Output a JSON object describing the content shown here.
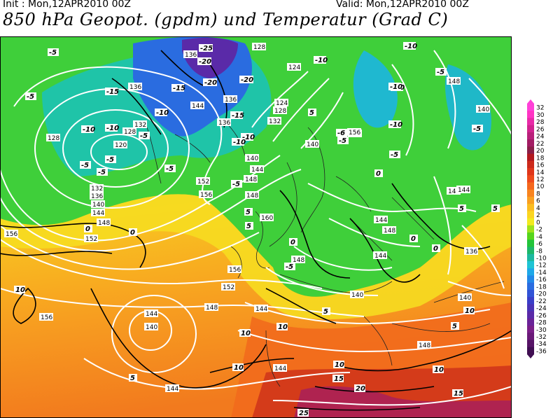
{
  "header": {
    "init": "Init : Mon,12APR2010 00Z",
    "valid": "Valid: Mon,12APR2010 00Z",
    "title": "850 hPa Geopot. (gpdm) und Temperatur (Grad C)"
  },
  "colorbar": {
    "levels": [
      "32",
      "30",
      "28",
      "26",
      "24",
      "22",
      "20",
      "18",
      "16",
      "14",
      "12",
      "10",
      "8",
      "6",
      "4",
      "2",
      "0",
      "-2",
      "-4",
      "-6",
      "-8",
      "-10",
      "-12",
      "-14",
      "-16",
      "-18",
      "-20",
      "-22",
      "-24",
      "-26",
      "-28",
      "-30",
      "-32",
      "-34",
      "-36"
    ],
    "colors": [
      "#ff40d8",
      "#ff33c4",
      "#e82aa8",
      "#d1238f",
      "#b8207a",
      "#a21c63",
      "#8a1f48",
      "#b3191f",
      "#cc2a1c",
      "#e0361b",
      "#ee4a1c",
      "#f5671d",
      "#f8841f",
      "#f9a021",
      "#fbbd21",
      "#fbd521",
      "#f2ea1f",
      "#9ee21c",
      "#56d51c",
      "#23c43a",
      "#1db76a",
      "#1cb8a0",
      "#1fc4d4",
      "#1ea8e8",
      "#2288e8",
      "#2a6ce0",
      "#3153d6",
      "#3a3ec8",
      "#4a33b6",
      "#5a2aa8",
      "#6a2398",
      "#7a1f88",
      "#6a1a78",
      "#561466",
      "#400e52"
    ]
  },
  "map": {
    "geopotential_labels": [
      {
        "t": "136"
      },
      {
        "t": "128"
      },
      {
        "t": "124"
      },
      {
        "t": "132"
      },
      {
        "t": "120"
      },
      {
        "t": "128"
      },
      {
        "t": "132"
      },
      {
        "t": "132"
      },
      {
        "t": "136"
      },
      {
        "t": "140"
      },
      {
        "t": "144"
      },
      {
        "t": "148"
      },
      {
        "t": "152"
      },
      {
        "t": "156"
      },
      {
        "t": "140"
      },
      {
        "t": "144"
      },
      {
        "t": "148"
      },
      {
        "t": "152"
      },
      {
        "t": "156"
      },
      {
        "t": "160"
      },
      {
        "t": "136"
      },
      {
        "t": "144"
      },
      {
        "t": "148"
      },
      {
        "t": "156"
      },
      {
        "t": "152"
      },
      {
        "t": "156"
      },
      {
        "t": "140"
      },
      {
        "t": "144"
      },
      {
        "t": "148"
      },
      {
        "t": "144"
      },
      {
        "t": "140"
      },
      {
        "t": "144"
      },
      {
        "t": "148"
      },
      {
        "t": "144"
      },
      {
        "t": "144"
      },
      {
        "t": "136"
      },
      {
        "t": "140"
      },
      {
        "t": "148"
      },
      {
        "t": "156"
      },
      {
        "t": "136"
      },
      {
        "t": "140"
      },
      {
        "t": "124"
      },
      {
        "t": "128"
      },
      {
        "t": "128"
      },
      {
        "t": "136"
      },
      {
        "t": "140"
      },
      {
        "t": "148"
      },
      {
        "t": "140"
      },
      {
        "t": "144"
      },
      {
        "t": "144"
      },
      {
        "t": "148"
      },
      {
        "t": "156"
      }
    ],
    "temperature_labels": [
      {
        "t": "-5"
      },
      {
        "t": "-5"
      },
      {
        "t": "-15"
      },
      {
        "t": "-10"
      },
      {
        "t": "-10"
      },
      {
        "t": "-5"
      },
      {
        "t": "-5"
      },
      {
        "t": "-5"
      },
      {
        "t": "-5"
      },
      {
        "t": "-15"
      },
      {
        "t": "-10"
      },
      {
        "t": "-20"
      },
      {
        "t": "-20"
      },
      {
        "t": "-25"
      },
      {
        "t": "-20"
      },
      {
        "t": "-15"
      },
      {
        "t": "-10"
      },
      {
        "t": "-10"
      },
      {
        "t": "-5"
      },
      {
        "t": "0"
      },
      {
        "t": "0"
      },
      {
        "t": "5"
      },
      {
        "t": "5"
      },
      {
        "t": "5"
      },
      {
        "t": "10"
      },
      {
        "t": "10"
      },
      {
        "t": "10"
      },
      {
        "t": "10"
      },
      {
        "t": "5"
      },
      {
        "t": "10"
      },
      {
        "t": "15"
      },
      {
        "t": "20"
      },
      {
        "t": "25"
      },
      {
        "t": "10"
      },
      {
        "t": "15"
      },
      {
        "t": "10"
      },
      {
        "t": "-5"
      },
      {
        "t": "-10"
      },
      {
        "t": "-10"
      },
      {
        "t": "-5"
      },
      {
        "t": "-6"
      },
      {
        "t": "-5"
      },
      {
        "t": "0"
      },
      {
        "t": "-5"
      },
      {
        "t": "0"
      },
      {
        "t": "-10"
      },
      {
        "t": "-5"
      },
      {
        "t": "0"
      },
      {
        "t": "5"
      },
      {
        "t": "5"
      },
      {
        "t": "5"
      },
      {
        "t": "0"
      },
      {
        "t": "-5"
      },
      {
        "t": "5"
      },
      {
        "t": "-10"
      },
      {
        "t": "-10"
      }
    ]
  }
}
